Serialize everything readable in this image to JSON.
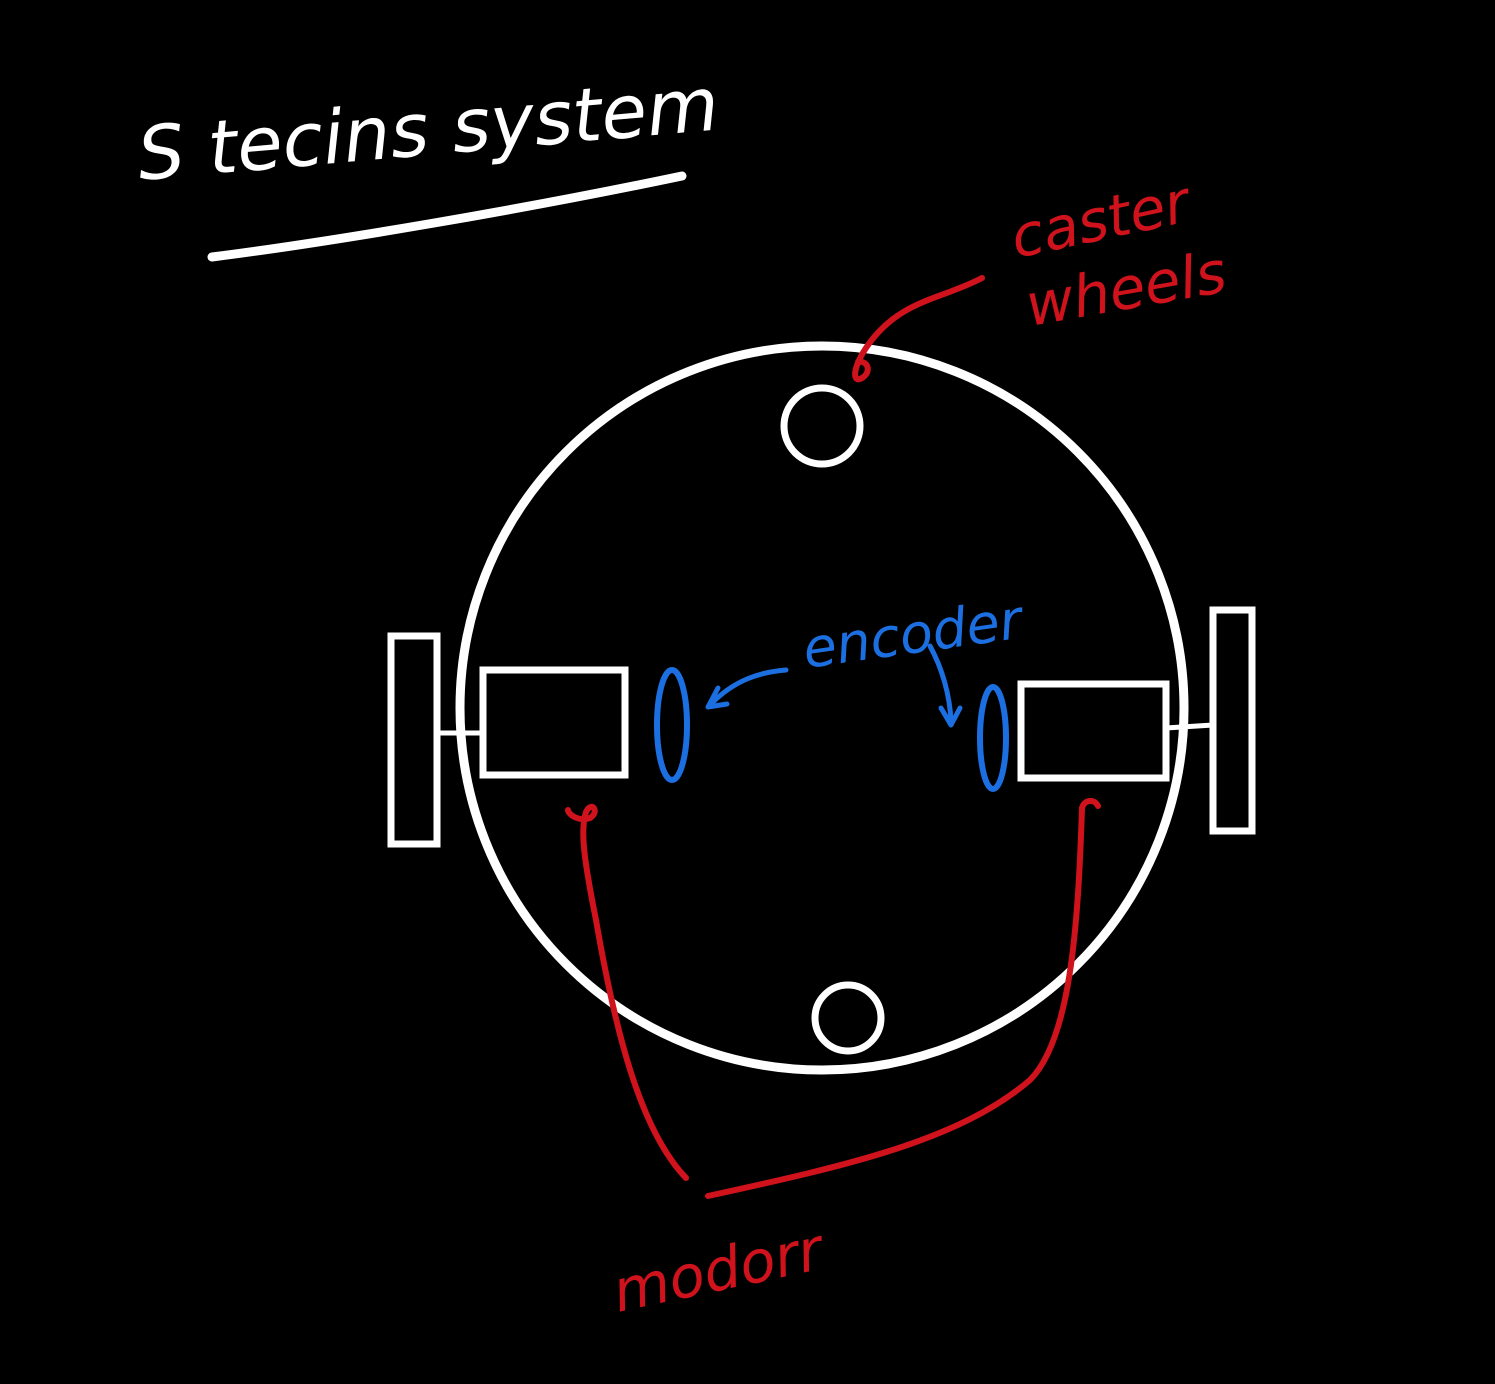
{
  "title": "S tecins system",
  "labels": {
    "caster_line1": "caster",
    "caster_line2": "wheels",
    "encoder": "encoder",
    "motors": "modorr"
  },
  "colors": {
    "background": "#000000",
    "outline": "#ffffff",
    "annotation_red": "#d0121c",
    "annotation_blue": "#1c6fe0"
  }
}
